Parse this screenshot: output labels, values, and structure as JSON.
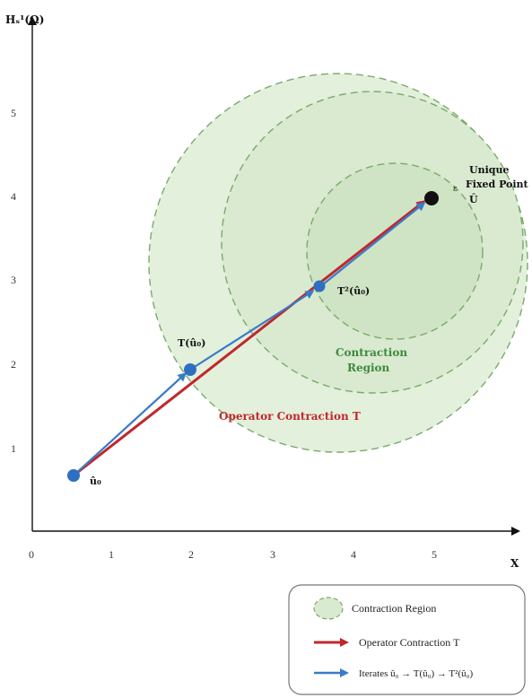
{
  "axes": {
    "y_label": "Hₛ¹(Ω)",
    "x_label": "X",
    "x_ticks": [
      "0",
      "1",
      "2",
      "3",
      "4",
      "5"
    ],
    "y_ticks": [
      "1",
      "2",
      "3",
      "4",
      "5"
    ]
  },
  "points": {
    "u0_label": "û₀",
    "tu0_label": "T(û₀)",
    "t2u0_label": "T²(û₀)",
    "fixed_label_1": "Unique",
    "fixed_label_2": "Fixed Point",
    "fixed_label_3": "Û",
    "epsilon_label": "ε"
  },
  "labels": {
    "region_1": "Contraction",
    "region_2": "Region",
    "operator": "Operator Contraction T"
  },
  "legend": {
    "region": "Contraction Region",
    "operator": "Operator Contraction T",
    "iterates": "Iterates û₀ → T(û₀) → T²(û₀)"
  },
  "colors": {
    "region_fill": "#d2e8c8",
    "region_stroke": "#7aaa6a",
    "operator_arrow": "#c0282d",
    "iterate_arrow": "#3a7bc8",
    "point_blue": "#2f6fc0",
    "fixed_point": "#111111"
  }
}
